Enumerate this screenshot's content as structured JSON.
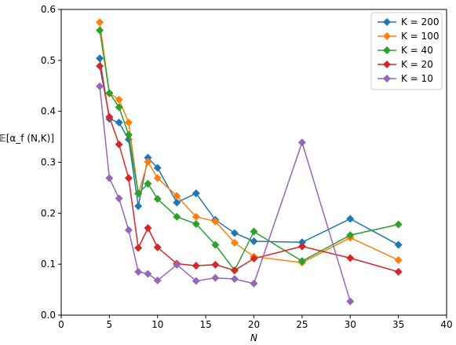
{
  "chart_data": {
    "type": "line",
    "title": "",
    "xlabel": "N",
    "ylabel": "𝔼[α_f (N,K)]",
    "xlim": [
      0,
      40
    ],
    "ylim": [
      0.0,
      0.6
    ],
    "xticks": [
      "0",
      "5",
      "10",
      "15",
      "20",
      "25",
      "30",
      "35",
      "40"
    ],
    "yticks": [
      "0.0",
      "0.1",
      "0.2",
      "0.3",
      "0.4",
      "0.5",
      "0.6"
    ],
    "grid": false,
    "legend_position": "top-right",
    "marker": "diamond",
    "series": [
      {
        "name": "K = 200",
        "color": "#1f77b4",
        "x": [
          4,
          5,
          6,
          7,
          8,
          9,
          10,
          12,
          14,
          16,
          18,
          20,
          25,
          30,
          35
        ],
        "y": [
          0.504,
          0.385,
          0.378,
          0.345,
          0.214,
          0.309,
          0.289,
          0.221,
          0.239,
          0.187,
          0.161,
          0.145,
          0.143,
          0.189,
          0.138
        ]
      },
      {
        "name": "K = 100",
        "color": "#ff7f0e",
        "x": [
          4,
          5,
          6,
          7,
          8,
          9,
          10,
          12,
          14,
          16,
          18,
          20,
          25,
          30,
          35
        ],
        "y": [
          0.575,
          0.435,
          0.423,
          0.378,
          0.238,
          0.301,
          0.269,
          0.234,
          0.193,
          0.184,
          0.142,
          0.115,
          0.103,
          0.152,
          0.108
        ]
      },
      {
        "name": "K = 40",
        "color": "#2ca02c",
        "x": [
          4,
          5,
          6,
          7,
          8,
          9,
          10,
          12,
          14,
          16,
          18,
          20,
          25,
          30,
          35
        ],
        "y": [
          0.559,
          0.436,
          0.408,
          0.354,
          0.239,
          0.258,
          0.228,
          0.193,
          0.179,
          0.138,
          0.088,
          0.164,
          0.106,
          0.157,
          0.178
        ]
      },
      {
        "name": "K = 20",
        "color": "#d62728",
        "x": [
          4,
          5,
          6,
          7,
          8,
          9,
          10,
          12,
          14,
          16,
          18,
          20,
          25,
          30,
          35
        ],
        "y": [
          0.489,
          0.389,
          0.335,
          0.269,
          0.132,
          0.171,
          0.133,
          0.101,
          0.097,
          0.099,
          0.088,
          0.111,
          0.135,
          0.112,
          0.085
        ]
      },
      {
        "name": "K = 10",
        "color": "#9467bd",
        "x": [
          4,
          5,
          6,
          7,
          8,
          9,
          10,
          12,
          14,
          16,
          18,
          20,
          25,
          30
        ],
        "y": [
          0.449,
          0.269,
          0.229,
          0.167,
          0.085,
          0.081,
          0.068,
          0.099,
          0.067,
          0.073,
          0.071,
          0.062,
          0.339,
          0.027
        ]
      }
    ]
  }
}
